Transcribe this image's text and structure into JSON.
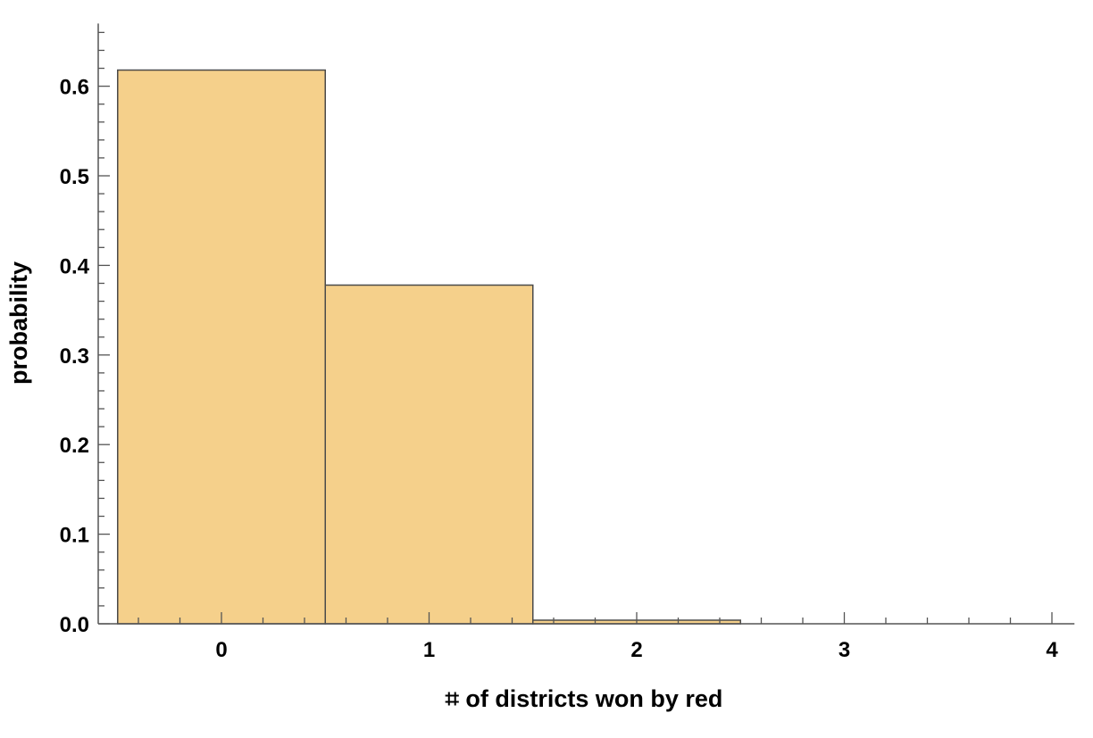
{
  "chart_data": {
    "type": "bar",
    "title": "",
    "xlabel": "⌗ of districts won by red",
    "ylabel": "probability",
    "categories": [
      "0",
      "1",
      "2",
      "3",
      "4"
    ],
    "values": [
      0.618,
      0.378,
      0.004,
      0,
      0
    ],
    "xlim": [
      -0.5,
      4.1
    ],
    "ylim": [
      0,
      0.65
    ],
    "x_ticks": [
      "0",
      "1",
      "2",
      "3",
      "4"
    ],
    "y_ticks": [
      "0.0",
      "0.1",
      "0.2",
      "0.3",
      "0.4",
      "0.5",
      "0.6"
    ],
    "grid": false,
    "legend": "none",
    "colors": {
      "bar_fill": "#f5d08b",
      "bar_stroke": "#4a4a4a",
      "axis": "#555555"
    }
  }
}
